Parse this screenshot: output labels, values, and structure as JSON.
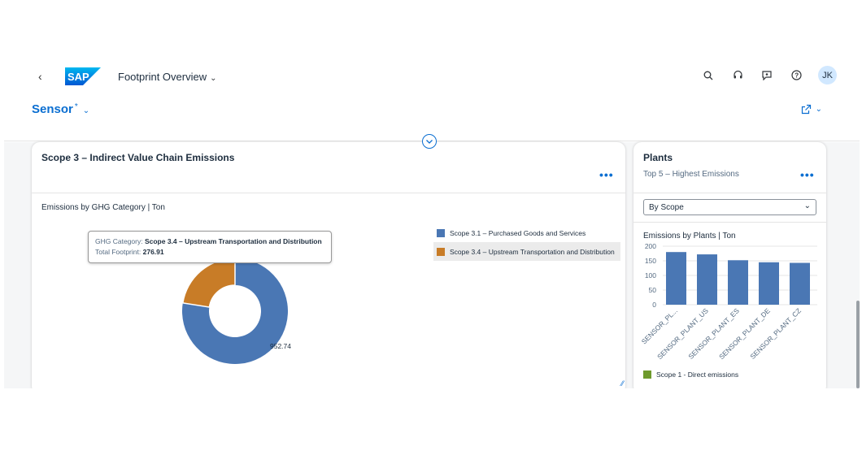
{
  "shellbar": {
    "app_title": "Footprint Overview",
    "logo_text": "SAP",
    "user_initials": "JK",
    "icons": [
      "back-icon",
      "search-icon",
      "headset-icon",
      "feedback-icon",
      "help-icon"
    ]
  },
  "header": {
    "variant": "Sensor",
    "variant_modified": "*",
    "icons": [
      "chevron-down-icon",
      "export-icon",
      "collapse-header-icon"
    ]
  },
  "scope3_card": {
    "title": "Scope 3 – Indirect Value Chain Emissions",
    "more_label": "•••",
    "chart_label": "Emissions by GHG Category | Ton",
    "tooltip": {
      "category_key": "GHG Category:",
      "category_value": "Scope 3.4 – Upstream Transportation and Distribution",
      "total_key": "Total Footprint:",
      "total_value": "276.91"
    },
    "data_label": "952.74"
  },
  "plants_card": {
    "title": "Plants",
    "subtitle": "Top 5 – Highest Emissions",
    "more_label": "•••",
    "select_value": "By Scope",
    "chart_label": "Emissions by Plants | Ton",
    "legend": "Scope 1 - Direct emissions"
  },
  "colors": {
    "accent": "#0a6ed1",
    "scope_3_1": "#4a77b4",
    "scope_3_4": "#c87c27",
    "scope_1": "#6e9a2c"
  },
  "chart_data": [
    {
      "type": "pie",
      "title": "Emissions by GHG Category | Ton",
      "categories": [
        "Scope 3.1 – Purchased Goods and Services",
        "Scope 3.4 – Upstream Transportation and Distribution"
      ],
      "values": [
        952.74,
        276.91
      ],
      "colors": [
        "#4a77b4",
        "#c87c27"
      ],
      "legend": "right",
      "highlighted": "Scope 3.4 – Upstream Transportation and Distribution"
    },
    {
      "type": "bar",
      "title": "Emissions by Plants | Ton",
      "categories": [
        "SENSOR_PL...",
        "SENSOR_PLANT_US",
        "SENSOR_PLANT_ES",
        "SENSOR_PLANT_DE",
        "SENSOR_PLANT_CZ"
      ],
      "series": [
        {
          "name": "Scope 1 - Direct emissions",
          "values": [
            180,
            172,
            152,
            145,
            143
          ]
        }
      ],
      "ylim": [
        0,
        200
      ],
      "yticks": [
        "200",
        "150",
        "100",
        "50",
        "0"
      ],
      "grid": true,
      "legend": "bottom",
      "bar_color": "#4a77b4"
    }
  ]
}
